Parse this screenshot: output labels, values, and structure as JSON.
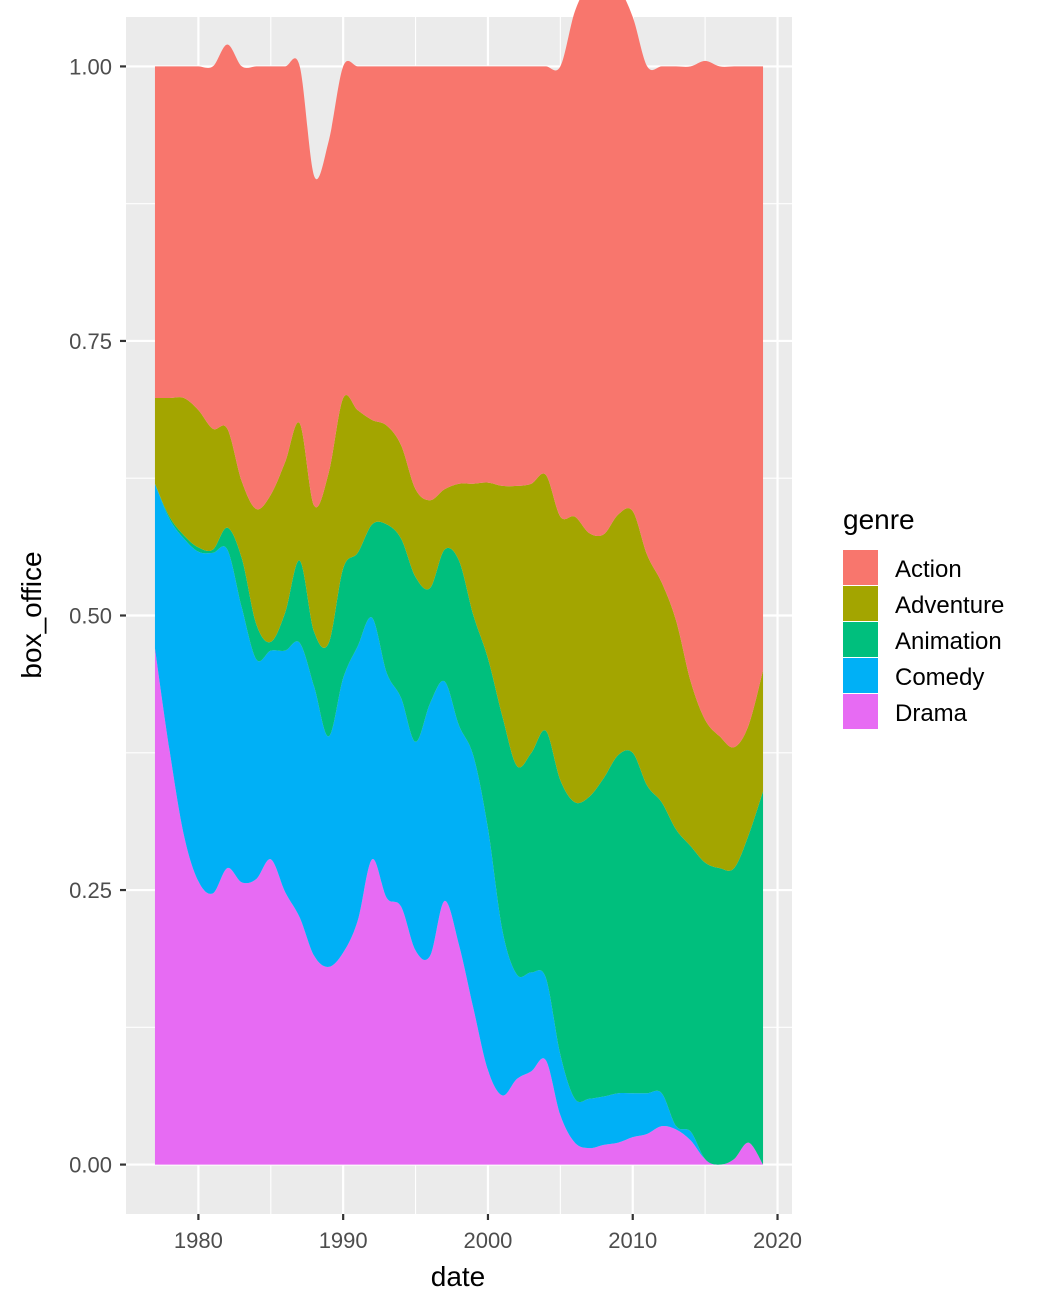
{
  "chart_data": {
    "type": "area",
    "stacking": "fill",
    "xlabel": "date",
    "ylabel": "box_office",
    "xlim": [
      1975,
      2021
    ],
    "ylim": [
      -0.045,
      1.045
    ],
    "x_ticks": [
      1980,
      1990,
      2000,
      2010,
      2020
    ],
    "x_tick_labels": [
      "1980",
      "1990",
      "2000",
      "2010",
      "2020"
    ],
    "y_ticks": [
      0,
      0.25,
      0.5,
      0.75,
      1
    ],
    "y_tick_labels": [
      "0.00",
      "0.25",
      "0.50",
      "0.75",
      "1.00"
    ],
    "grid": true,
    "legend": {
      "title": "genre",
      "position": "right"
    },
    "x": [
      1977,
      1978,
      1979,
      1980,
      1981,
      1982,
      1983,
      1984,
      1985,
      1986,
      1987,
      1988,
      1989,
      1990,
      1991,
      1992,
      1993,
      1994,
      1995,
      1996,
      1997,
      1998,
      1999,
      2000,
      2001,
      2002,
      2003,
      2004,
      2005,
      2006,
      2007,
      2008,
      2009,
      2010,
      2011,
      2012,
      2013,
      2014,
      2015,
      2016,
      2017,
      2018,
      2019
    ],
    "series": [
      {
        "name": "Action",
        "color": "#F8766D",
        "values": [
          0.302,
          0.302,
          0.302,
          0.313,
          0.33,
          0.35,
          0.378,
          0.403,
          0.39,
          0.36,
          0.325,
          0.3,
          0.302,
          0.302,
          0.313,
          0.322,
          0.327,
          0.345,
          0.385,
          0.395,
          0.385,
          0.38,
          0.38,
          0.379,
          0.382,
          0.382,
          0.38,
          0.372,
          0.41,
          0.46,
          0.5,
          0.505,
          0.48,
          0.45,
          0.445,
          0.47,
          0.505,
          0.56,
          0.6,
          0.61,
          0.62,
          0.6,
          0.55
        ]
      },
      {
        "name": "Adventure",
        "color": "#A3A500",
        "values": [
          0.078,
          0.108,
          0.125,
          0.125,
          0.11,
          0.09,
          0.07,
          0.105,
          0.134,
          0.137,
          0.125,
          0.115,
          0.155,
          0.155,
          0.13,
          0.095,
          0.09,
          0.085,
          0.08,
          0.08,
          0.055,
          0.07,
          0.12,
          0.16,
          0.21,
          0.255,
          0.245,
          0.233,
          0.24,
          0.26,
          0.24,
          0.222,
          0.219,
          0.22,
          0.21,
          0.2,
          0.19,
          0.15,
          0.13,
          0.12,
          0.11,
          0.1,
          0.11
        ]
      },
      {
        "name": "Animation",
        "color": "#00BF7D",
        "values": [
          0.0,
          0.002,
          0.003,
          0.004,
          0.003,
          0.02,
          0.045,
          0.032,
          0.008,
          0.035,
          0.075,
          0.05,
          0.085,
          0.1,
          0.085,
          0.085,
          0.135,
          0.145,
          0.15,
          0.105,
          0.12,
          0.15,
          0.128,
          0.155,
          0.195,
          0.19,
          0.2,
          0.225,
          0.25,
          0.27,
          0.275,
          0.29,
          0.308,
          0.31,
          0.28,
          0.265,
          0.27,
          0.26,
          0.27,
          0.27,
          0.265,
          0.28,
          0.34
        ]
      },
      {
        "name": "Comedy",
        "color": "#00B0F6",
        "values": [
          0.15,
          0.21,
          0.27,
          0.3,
          0.31,
          0.29,
          0.25,
          0.2,
          0.19,
          0.22,
          0.25,
          0.245,
          0.21,
          0.25,
          0.25,
          0.22,
          0.205,
          0.19,
          0.19,
          0.23,
          0.2,
          0.2,
          0.23,
          0.22,
          0.15,
          0.095,
          0.09,
          0.075,
          0.055,
          0.04,
          0.045,
          0.044,
          0.045,
          0.04,
          0.037,
          0.03,
          0.003,
          0.008,
          0.0,
          0.0,
          0.0,
          0.0,
          0.0
        ]
      },
      {
        "name": "Drama",
        "color": "#E76BF3",
        "values": [
          0.47,
          0.378,
          0.3,
          0.258,
          0.247,
          0.27,
          0.257,
          0.26,
          0.278,
          0.248,
          0.225,
          0.19,
          0.18,
          0.193,
          0.222,
          0.278,
          0.243,
          0.235,
          0.195,
          0.19,
          0.24,
          0.2,
          0.142,
          0.086,
          0.063,
          0.078,
          0.085,
          0.095,
          0.045,
          0.02,
          0.015,
          0.018,
          0.02,
          0.025,
          0.028,
          0.035,
          0.032,
          0.022,
          0.005,
          0.0,
          0.005,
          0.02,
          0.0
        ]
      }
    ]
  }
}
